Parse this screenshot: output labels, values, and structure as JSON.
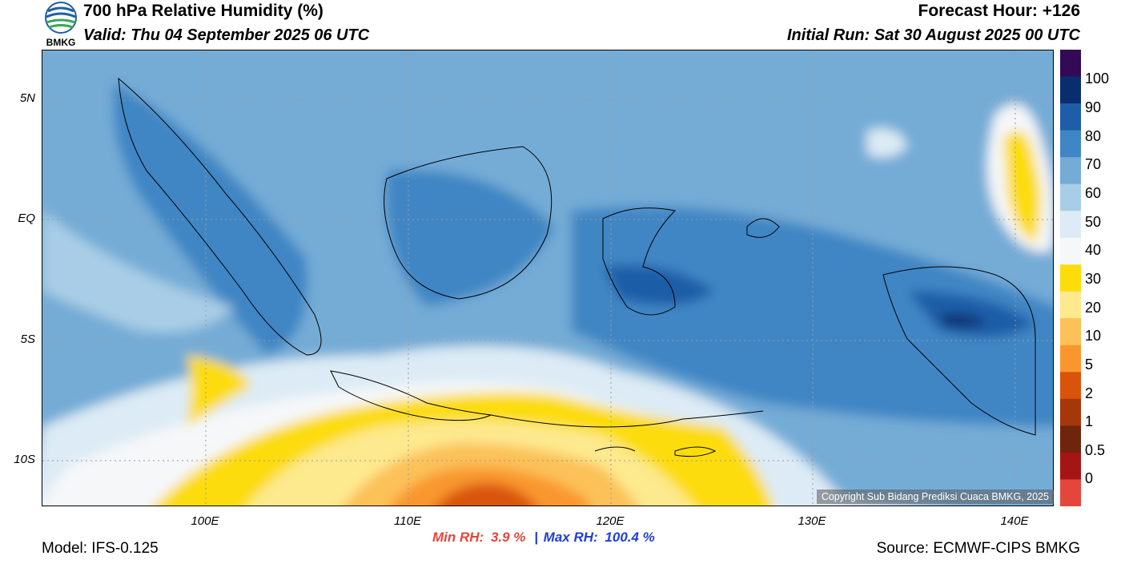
{
  "header": {
    "title": "700 hPa Relative Humidity (%)",
    "valid": "Valid: Thu 04 September 2025 06 UTC",
    "forecast_hour": "Forecast Hour: +126",
    "initial_run": "Initial Run: Sat 30 August 2025 00 UTC",
    "logo_text": "BMKG"
  },
  "axes": {
    "lat_labels": [
      "5N",
      "EQ",
      "5S",
      "10S"
    ],
    "lon_labels": [
      "100E",
      "110E",
      "120E",
      "130E",
      "140E"
    ]
  },
  "colorbar": {
    "labels": [
      "100",
      "90",
      "80",
      "70",
      "60",
      "50",
      "40",
      "30",
      "20",
      "10",
      "5",
      "2",
      "1",
      "0.5",
      "0"
    ],
    "colors": [
      "#330a55",
      "#0a2d6e",
      "#1f5da8",
      "#3f86c4",
      "#74acd6",
      "#a9cde6",
      "#dcebf5",
      "#f5f7f9",
      "#fcdc0a",
      "#fde98e",
      "#fcc159",
      "#f9972e",
      "#d9540a",
      "#a6370b",
      "#6e250c",
      "#a51515",
      "#e5463c"
    ]
  },
  "map": {
    "copyright": "Copyright Sub Bidang Prediksi Cuaca BMKG, 2025"
  },
  "footer": {
    "min_label": "Min RH:",
    "min_value": "3.9 %",
    "separator": "|",
    "max_label": "Max RH:",
    "max_value": "100.4 %",
    "model": "Model: IFS-0.125",
    "source": "Source: ECMWF-CIPS BMKG"
  }
}
